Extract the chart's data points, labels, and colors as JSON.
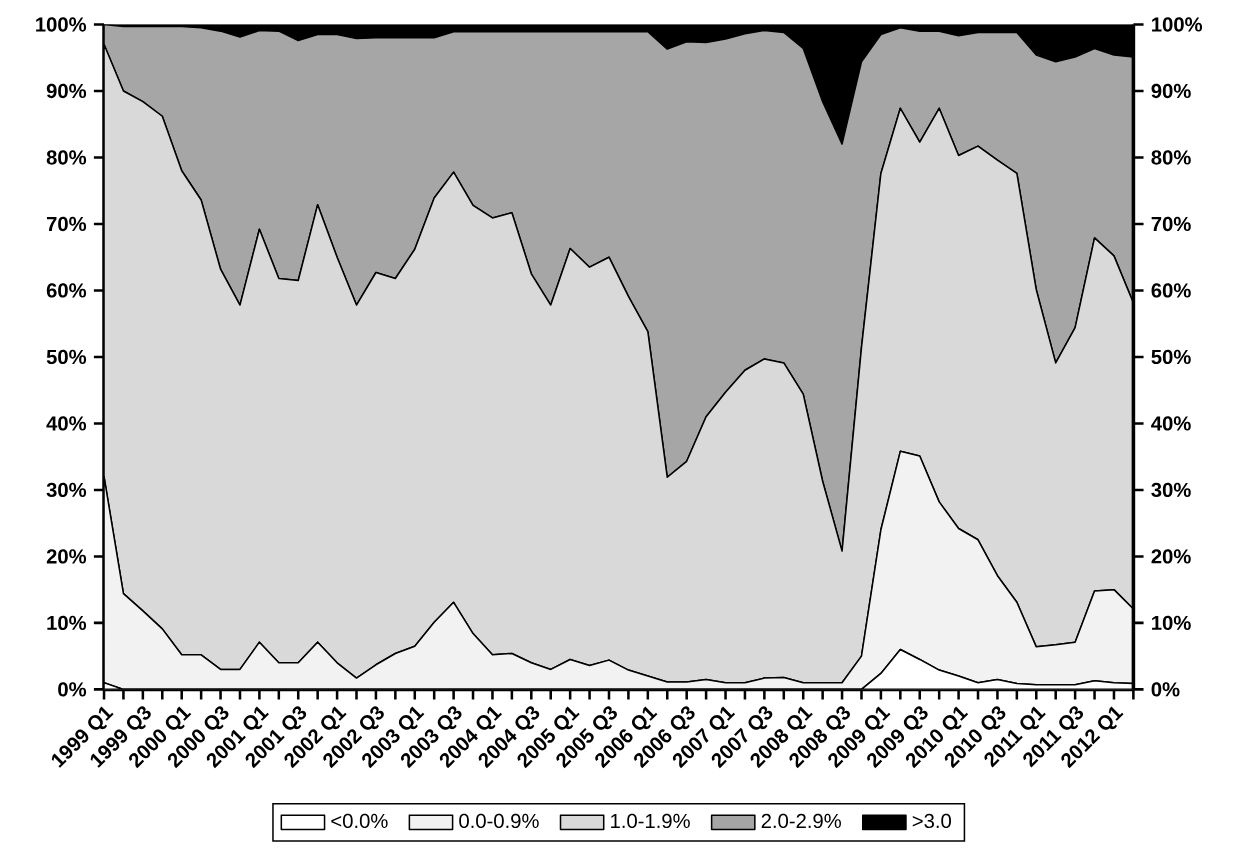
{
  "chart_data": {
    "type": "area",
    "stacked": true,
    "legend": "bottom",
    "categories": [
      "1999 Q1",
      null,
      "1999 Q3",
      null,
      "2000 Q1",
      null,
      "2000 Q3",
      null,
      "2001 Q1",
      null,
      "2001 Q3",
      null,
      "2002 Q1",
      null,
      "2002 Q3",
      null,
      "2003 Q1",
      null,
      "2003 Q3",
      null,
      "2004 Q1",
      null,
      "2004 Q3",
      null,
      "2005 Q1",
      null,
      "2005 Q3",
      null,
      "2006 Q1",
      null,
      "2006 Q3",
      null,
      "2007 Q1",
      null,
      "2007 Q3",
      null,
      "2008 Q1",
      null,
      "2008 Q3",
      null,
      "2009 Q1",
      null,
      "2009 Q3",
      null,
      "2010 Q1",
      null,
      "2010 Q3",
      null,
      "2011 Q1",
      null,
      "2011 Q3",
      null,
      "2012 Q1",
      null
    ],
    "series": [
      {
        "name": "<0.0%",
        "color": "#ffffff",
        "values": [
          1.0,
          0,
          0,
          0,
          0,
          0,
          0,
          0,
          0,
          0,
          0,
          0,
          0,
          0,
          0,
          0,
          0,
          0,
          0,
          0,
          0,
          0,
          0,
          0,
          0,
          0,
          0,
          0,
          0,
          0,
          0,
          0,
          0,
          0,
          0,
          0,
          0,
          0,
          0,
          0,
          2.4,
          6.0,
          4.5,
          2.9,
          2.0,
          1.0,
          1.5,
          0.9,
          0.7,
          0.7,
          0.7,
          1.3,
          1.0,
          0.9
        ]
      },
      {
        "name": "0.0-0.9%",
        "color": "#f2f2f2",
        "values": [
          31.0,
          14.4,
          11.8,
          9.1,
          5.2,
          5.2,
          3.0,
          3.0,
          7.1,
          4.0,
          4.0,
          7.1,
          4.0,
          1.7,
          3.7,
          5.4,
          6.5,
          10.1,
          13.1,
          8.4,
          5.2,
          5.4,
          4.0,
          3.0,
          4.5,
          3.6,
          4.4,
          2.9,
          2.0,
          1.1,
          1.1,
          1.5,
          1.0,
          1.0,
          1.7,
          1.8,
          1.0,
          1.0,
          1.0,
          5.0,
          21.6,
          29.8,
          30.6,
          25.3,
          22.2,
          21.5,
          15.6,
          12.2,
          5.7,
          6.0,
          6.4,
          13.5,
          14.0,
          11.2
        ]
      },
      {
        "name": "1.0-1.9%",
        "color": "#d9d9d9",
        "values": [
          65.0,
          75.6,
          76.6,
          77.1,
          72.8,
          68.4,
          60.2,
          54.8,
          62.1,
          57.8,
          57.5,
          65.8,
          61.0,
          56.1,
          59.0,
          56.4,
          59.7,
          63.8,
          64.7,
          64.4,
          65.7,
          66.3,
          58.5,
          54.8,
          61.8,
          59.9,
          60.6,
          56.2,
          51.8,
          30.8,
          33.2,
          39.5,
          43.7,
          47.0,
          48.0,
          47.3,
          43.4,
          30.3,
          19.8,
          46.4,
          53.6,
          51.6,
          47.2,
          59.2,
          56.1,
          59.2,
          62.5,
          64.5,
          53.7,
          42.4,
          47.3,
          53.1,
          50.2,
          46.0
        ]
      },
      {
        "name": "2.0-2.9%",
        "color": "#a6a6a6",
        "values": [
          3.0,
          9.7,
          11.3,
          13.5,
          21.7,
          25.9,
          35.8,
          40.3,
          29.9,
          37.2,
          36.1,
          25.6,
          33.5,
          40.1,
          35.3,
          36.2,
          31.8,
          24.1,
          21.1,
          26.1,
          28.0,
          27.2,
          36.4,
          41.1,
          32.6,
          35.4,
          33.9,
          39.8,
          45.1,
          64.4,
          63.1,
          56.3,
          53.1,
          50.6,
          49.4,
          49.7,
          52.0,
          57.1,
          61.2,
          43.0,
          20.9,
          12.1,
          16.7,
          11.6,
          18.0,
          17.1,
          19.2,
          21.2,
          35.3,
          45.3,
          40.7,
          28.5,
          30.2,
          37.0
        ]
      },
      {
        "name": ">3.0",
        "color": "#000000",
        "values": [
          0,
          0.3,
          0.3,
          0.3,
          0.3,
          0.5,
          1.0,
          1.9,
          0.9,
          1.0,
          2.4,
          1.5,
          1.5,
          2.1,
          2.0,
          2.0,
          2.0,
          2.0,
          1.1,
          1.1,
          1.1,
          1.1,
          1.1,
          1.1,
          1.1,
          1.1,
          1.1,
          1.1,
          1.1,
          3.7,
          2.6,
          2.7,
          2.2,
          1.4,
          0.9,
          1.2,
          3.6,
          11.6,
          18.0,
          5.6,
          1.5,
          0.5,
          1.0,
          1.0,
          1.7,
          1.2,
          1.2,
          1.2,
          4.6,
          5.6,
          4.9,
          3.6,
          4.6,
          4.9
        ]
      }
    ],
    "ylim": [
      0,
      100
    ],
    "yticks": [
      {
        "value": 0,
        "label": "0%"
      },
      {
        "value": 10,
        "label": "10%"
      },
      {
        "value": 20,
        "label": "20%"
      },
      {
        "value": 30,
        "label": "30%"
      },
      {
        "value": 40,
        "label": "40%"
      },
      {
        "value": 50,
        "label": "50%"
      },
      {
        "value": 60,
        "label": "60%"
      },
      {
        "value": 70,
        "label": "70%"
      },
      {
        "value": 80,
        "label": "80%"
      },
      {
        "value": 90,
        "label": "90%"
      },
      {
        "value": 100,
        "label": "100%"
      }
    ],
    "y2lim": [
      0,
      100
    ],
    "y2ticks": [
      {
        "value": 0,
        "label": "0%"
      },
      {
        "value": 10,
        "label": "10%"
      },
      {
        "value": 20,
        "label": "20%"
      },
      {
        "value": 30,
        "label": "30%"
      },
      {
        "value": 40,
        "label": "40%"
      },
      {
        "value": 50,
        "label": "50%"
      },
      {
        "value": 60,
        "label": "60%"
      },
      {
        "value": 70,
        "label": "70%"
      },
      {
        "value": 80,
        "label": "80%"
      },
      {
        "value": 90,
        "label": "90%"
      },
      {
        "value": 100,
        "label": "100%"
      }
    ]
  }
}
